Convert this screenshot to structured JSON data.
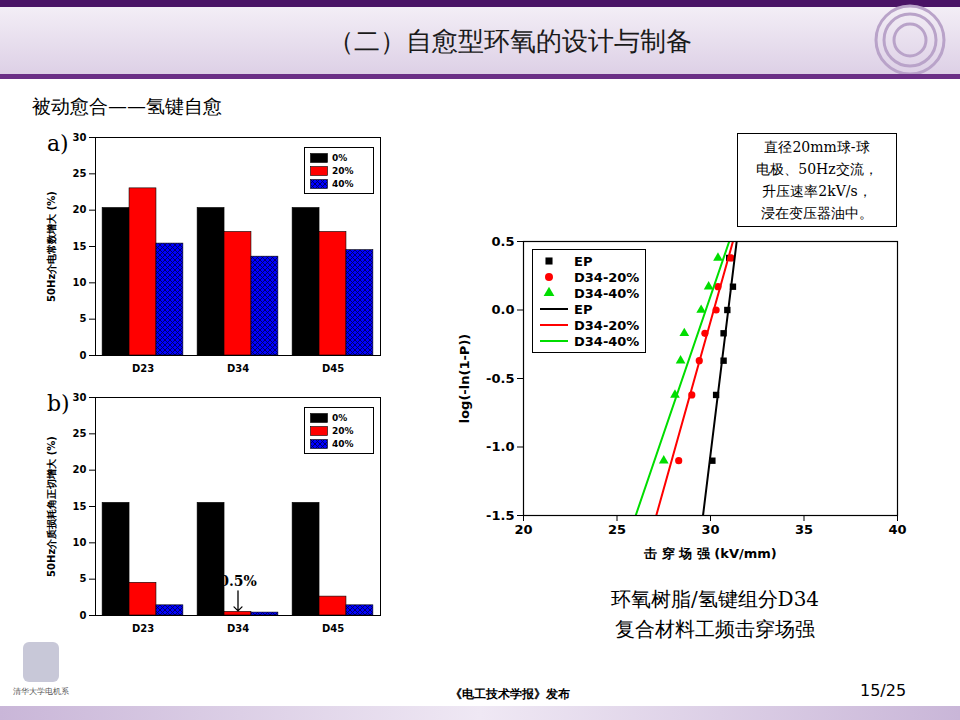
{
  "slide": {
    "title": "（二）自愈型环氧的设计与制备",
    "subtitle": "被动愈合——氢键自愈",
    "footer": "《电工技术学报》发布",
    "page": "15/25",
    "logo_text": "清华大学电机系"
  },
  "chart_data": [
    {
      "type": "bar",
      "panel_label": "a)",
      "y_label": "50Hz介电常数增大 (%)",
      "categories": [
        "D23",
        "D34",
        "D45"
      ],
      "ylim": [
        0,
        30
      ],
      "yticks": [
        0,
        5,
        10,
        15,
        20,
        25,
        30
      ],
      "legend": "upper right",
      "series": [
        {
          "name": "0%",
          "color": "#000000",
          "values": [
            20.3,
            20.3,
            20.3
          ]
        },
        {
          "name": "20%",
          "color": "#ff0000",
          "values": [
            23.0,
            17.0,
            17.0
          ]
        },
        {
          "name": "40%",
          "color": "#0000ff",
          "values": [
            15.4,
            13.6,
            14.5
          ]
        }
      ]
    },
    {
      "type": "bar",
      "panel_label": "b)",
      "y_label": "50Hz介质损耗角正切增大 (%)",
      "categories": [
        "D23",
        "D34",
        "D45"
      ],
      "ylim": [
        0,
        30
      ],
      "yticks": [
        0,
        5,
        10,
        15,
        20,
        25,
        30
      ],
      "legend": "upper right",
      "series": [
        {
          "name": "0%",
          "color": "#000000",
          "values": [
            15.5,
            15.5,
            15.5
          ]
        },
        {
          "name": "20%",
          "color": "#ff0000",
          "values": [
            4.5,
            0.5,
            2.6
          ]
        },
        {
          "name": "40%",
          "color": "#0000ff",
          "values": [
            1.4,
            0.4,
            1.4
          ]
        }
      ],
      "annotations": [
        {
          "text": "0.5%",
          "category": "D34",
          "series": "20%"
        }
      ]
    },
    {
      "type": "scatter",
      "x_label": "击 穿 场 强 (kV/mm)",
      "y_label": "log(-ln(1-P))",
      "xlim": [
        20,
        40
      ],
      "xticks": [
        20,
        25,
        30,
        35,
        40
      ],
      "ylim": [
        -1.5,
        0.5
      ],
      "yticks": [
        -1.5,
        {
          "value": -1,
          "label": "-1.0"
        },
        -0.5,
        {
          "value": 0,
          "label": "0.0"
        },
        0.5
      ],
      "legend": "upper left",
      "annotations": [
        "直径20mm球-球",
        "电极、50Hz交流，",
        "升压速率2kV/s，",
        "浸在变压器油中。"
      ],
      "caption": [
        "环氧树脂/氢键组分D34",
        "复合材料工频击穿场强"
      ],
      "series": [
        {
          "name": "EP",
          "type": "scatter",
          "marker": "square",
          "color": "#000000",
          "x": [
            30.1,
            30.3,
            30.7,
            30.7,
            30.9,
            31.2,
            31.0
          ],
          "values": [
            -1.1,
            -0.62,
            -0.37,
            -0.17,
            0.0,
            0.17,
            0.38
          ]
        },
        {
          "name": "D34-20%",
          "type": "scatter",
          "marker": "circle",
          "color": "#ff0000",
          "x": [
            28.3,
            29.0,
            29.4,
            29.7,
            30.3,
            30.4,
            31.1
          ],
          "values": [
            -1.1,
            -0.62,
            -0.37,
            -0.17,
            0.0,
            0.17,
            0.38
          ]
        },
        {
          "name": "D34-40%",
          "type": "scatter",
          "marker": "triangle",
          "color": "#00dd00",
          "x": [
            27.5,
            28.1,
            28.4,
            28.6,
            29.5,
            29.9,
            30.4
          ],
          "values": [
            -1.1,
            -0.62,
            -0.37,
            -0.17,
            0.0,
            0.17,
            0.38
          ]
        },
        {
          "name": "EP",
          "type": "line",
          "line_style": "solid",
          "color": "#000000",
          "x": [
            29.6,
            31.4
          ],
          "values": [
            -1.5,
            0.5
          ]
        },
        {
          "name": "D34-20%",
          "type": "line",
          "line_style": "solid",
          "color": "#ff0000",
          "x": [
            27.1,
            31.2
          ],
          "values": [
            -1.5,
            0.5
          ]
        },
        {
          "name": "D34-40%",
          "type": "line",
          "line_style": "solid",
          "color": "#00dd00",
          "x": [
            26.0,
            31.0
          ],
          "values": [
            -1.5,
            0.5
          ]
        }
      ]
    }
  ]
}
